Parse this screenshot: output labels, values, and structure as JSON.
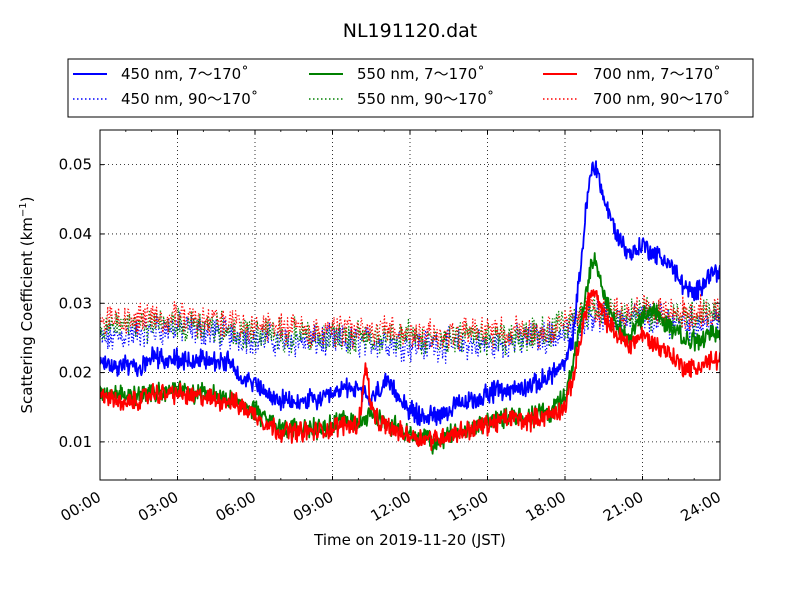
{
  "chart_data": {
    "type": "line",
    "title": "NL191120.dat",
    "xlabel": "Time on 2019-11-20 (JST)",
    "ylabel": "Scattering Coefficient (km",
    "ylabel_sup": "−1",
    "ylabel_tail": ")",
    "xlim": [
      0,
      24
    ],
    "ylim": [
      0.0045,
      0.055
    ],
    "x_ticks": [
      0,
      3,
      6,
      9,
      12,
      15,
      18,
      21,
      24
    ],
    "x_tick_labels": [
      "00:00",
      "03:00",
      "06:00",
      "09:00",
      "12:00",
      "15:00",
      "18:00",
      "21:00",
      "24:00"
    ],
    "y_ticks": [
      0.01,
      0.02,
      0.03,
      0.04,
      0.05
    ],
    "y_tick_labels": [
      "0.01",
      "0.02",
      "0.03",
      "0.04",
      "0.05"
    ],
    "grid": true,
    "legend": {
      "placement": "top-outside",
      "entries": [
        {
          "label": "450 nm, 7～170˚",
          "color": "#0000ff",
          "style": "solid"
        },
        {
          "label": "550 nm, 7～170˚",
          "color": "#008000",
          "style": "solid"
        },
        {
          "label": "700 nm, 7～170˚",
          "color": "#ff0000",
          "style": "solid"
        },
        {
          "label": "450 nm, 90～170˚",
          "color": "#0000ff",
          "style": "dotted"
        },
        {
          "label": "550 nm, 90～170˚",
          "color": "#008000",
          "style": "dotted"
        },
        {
          "label": "700 nm, 90～170˚",
          "color": "#ff0000",
          "style": "dotted"
        }
      ]
    },
    "series": [
      {
        "name": "450 nm, 90～170˚",
        "color": "#0000ff",
        "style": "dotted",
        "x": [
          0,
          1,
          2,
          3,
          4,
          5,
          6,
          7,
          8,
          9,
          10,
          11,
          12,
          13,
          14,
          15,
          16,
          17,
          18,
          18.5,
          19,
          19.5,
          20,
          21,
          22,
          23,
          24
        ],
        "y": [
          0.0245,
          0.0255,
          0.026,
          0.0265,
          0.026,
          0.0255,
          0.025,
          0.0245,
          0.0245,
          0.0245,
          0.0245,
          0.0245,
          0.024,
          0.024,
          0.024,
          0.024,
          0.0245,
          0.025,
          0.0255,
          0.027,
          0.0285,
          0.028,
          0.0275,
          0.028,
          0.0275,
          0.027,
          0.0275
        ]
      },
      {
        "name": "550 nm, 90～170˚",
        "color": "#008000",
        "style": "dotted",
        "x": [
          0,
          1,
          2,
          3,
          4,
          5,
          6,
          7,
          8,
          9,
          10,
          11,
          12,
          13,
          14,
          15,
          16,
          17,
          18,
          18.5,
          19,
          19.5,
          20,
          21,
          22,
          23,
          24
        ],
        "y": [
          0.026,
          0.0265,
          0.027,
          0.027,
          0.0265,
          0.026,
          0.0255,
          0.0255,
          0.0255,
          0.025,
          0.025,
          0.025,
          0.025,
          0.025,
          0.025,
          0.025,
          0.025,
          0.0255,
          0.0265,
          0.028,
          0.029,
          0.0285,
          0.0285,
          0.0285,
          0.028,
          0.028,
          0.028
        ]
      },
      {
        "name": "700 nm, 90～170˚",
        "color": "#ff0000",
        "style": "dotted",
        "x": [
          0,
          1,
          2,
          3,
          4,
          5,
          6,
          7,
          8,
          9,
          10,
          11,
          12,
          13,
          14,
          15,
          16,
          17,
          18,
          18.5,
          19,
          19.5,
          20,
          21,
          22,
          23,
          24
        ],
        "y": [
          0.0275,
          0.0275,
          0.028,
          0.028,
          0.0275,
          0.027,
          0.0265,
          0.0265,
          0.026,
          0.026,
          0.026,
          0.026,
          0.0255,
          0.0255,
          0.0255,
          0.026,
          0.026,
          0.026,
          0.027,
          0.0285,
          0.0295,
          0.029,
          0.0285,
          0.029,
          0.0285,
          0.0285,
          0.029
        ]
      },
      {
        "name": "450 nm, 7～170˚",
        "color": "#0000ff",
        "style": "solid",
        "x": [
          0,
          0.5,
          1,
          1.5,
          2,
          2.5,
          3,
          3.5,
          4,
          4.5,
          5,
          5.5,
          6,
          6.5,
          7,
          7.5,
          8,
          8.5,
          9,
          9.5,
          10,
          10.5,
          11,
          11.5,
          12,
          12.5,
          13,
          13.5,
          14,
          14.5,
          15,
          15.5,
          16,
          16.5,
          17,
          17.5,
          18,
          18.3,
          18.6,
          18.8,
          19,
          19.2,
          19.5,
          20,
          20.5,
          21,
          21.5,
          22,
          22.5,
          23,
          23.5,
          24
        ],
        "y": [
          0.021,
          0.021,
          0.021,
          0.0205,
          0.0225,
          0.022,
          0.022,
          0.0215,
          0.022,
          0.0215,
          0.0215,
          0.0195,
          0.0185,
          0.0165,
          0.016,
          0.0155,
          0.016,
          0.016,
          0.0165,
          0.018,
          0.0175,
          0.016,
          0.0185,
          0.017,
          0.0145,
          0.0135,
          0.014,
          0.0145,
          0.0155,
          0.016,
          0.017,
          0.0175,
          0.0175,
          0.018,
          0.0185,
          0.02,
          0.021,
          0.025,
          0.035,
          0.043,
          0.049,
          0.05,
          0.045,
          0.04,
          0.037,
          0.0385,
          0.037,
          0.036,
          0.033,
          0.031,
          0.034,
          0.035
        ]
      },
      {
        "name": "550 nm, 7～170˚",
        "color": "#008000",
        "style": "solid",
        "x": [
          0,
          0.5,
          1,
          1.5,
          2,
          2.5,
          3,
          3.5,
          4,
          4.5,
          5,
          5.5,
          6,
          6.5,
          7,
          7.5,
          8,
          8.5,
          9,
          9.5,
          10,
          10.5,
          11,
          11.5,
          12,
          12.5,
          13,
          13.5,
          14,
          14.5,
          15,
          15.5,
          16,
          16.5,
          17,
          17.5,
          18,
          18.3,
          18.6,
          18.8,
          19,
          19.2,
          19.5,
          20,
          20.5,
          21,
          21.5,
          22,
          22.5,
          23,
          23.5,
          24
        ],
        "y": [
          0.017,
          0.017,
          0.0165,
          0.0165,
          0.0175,
          0.0175,
          0.0175,
          0.017,
          0.017,
          0.0165,
          0.0165,
          0.0155,
          0.0145,
          0.013,
          0.012,
          0.012,
          0.012,
          0.012,
          0.0125,
          0.0135,
          0.0125,
          0.014,
          0.013,
          0.012,
          0.011,
          0.0105,
          0.0095,
          0.011,
          0.0115,
          0.012,
          0.013,
          0.0135,
          0.0135,
          0.0135,
          0.014,
          0.0145,
          0.0165,
          0.021,
          0.027,
          0.031,
          0.035,
          0.036,
          0.031,
          0.027,
          0.025,
          0.028,
          0.029,
          0.027,
          0.025,
          0.0245,
          0.025,
          0.026
        ]
      },
      {
        "name": "700 nm, 7～170˚",
        "color": "#ff0000",
        "style": "solid",
        "x": [
          0,
          0.5,
          1,
          1.5,
          2,
          2.5,
          3,
          3.5,
          4,
          4.5,
          5,
          5.5,
          6,
          6.5,
          7,
          7.5,
          8,
          8.5,
          9,
          9.5,
          10,
          10.3,
          10.5,
          10.8,
          11,
          11.5,
          12,
          12.5,
          13,
          13.5,
          14,
          14.5,
          15,
          15.5,
          16,
          16.5,
          17,
          17.5,
          18,
          18.3,
          18.6,
          18.8,
          19,
          19.2,
          19.5,
          20,
          20.5,
          21,
          21.5,
          22,
          22.5,
          23,
          23.5,
          24
        ],
        "y": [
          0.0165,
          0.0165,
          0.0155,
          0.016,
          0.017,
          0.017,
          0.017,
          0.0165,
          0.0165,
          0.016,
          0.016,
          0.015,
          0.014,
          0.0125,
          0.0115,
          0.0115,
          0.0115,
          0.0115,
          0.012,
          0.0125,
          0.0125,
          0.021,
          0.015,
          0.0125,
          0.0125,
          0.0115,
          0.011,
          0.0105,
          0.0105,
          0.011,
          0.0115,
          0.012,
          0.0125,
          0.013,
          0.0135,
          0.013,
          0.0135,
          0.014,
          0.015,
          0.019,
          0.025,
          0.029,
          0.0315,
          0.031,
          0.028,
          0.0255,
          0.024,
          0.0255,
          0.024,
          0.023,
          0.021,
          0.0205,
          0.0215,
          0.022
        ]
      }
    ]
  }
}
